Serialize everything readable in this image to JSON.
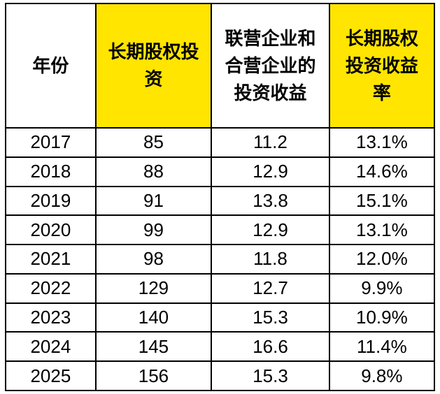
{
  "colors": {
    "header_highlight": "#FFE500",
    "border": "#000000",
    "text": "#000000",
    "background": "#FFFFFF"
  },
  "chart_data": {
    "type": "table",
    "title": "",
    "columns": [
      {
        "label": "年份",
        "highlight": false
      },
      {
        "label": "长期股权投资",
        "highlight": true
      },
      {
        "label": "联营企业和合营企业的投资收益",
        "highlight": false
      },
      {
        "label": "长期股权投资收益率",
        "highlight": true
      }
    ],
    "rows": [
      [
        "2017",
        "85",
        "11.2",
        "13.1%"
      ],
      [
        "2018",
        "88",
        "12.9",
        "14.6%"
      ],
      [
        "2019",
        "91",
        "13.8",
        "15.1%"
      ],
      [
        "2020",
        "99",
        "12.9",
        "13.1%"
      ],
      [
        "2021",
        "98",
        "11.8",
        "12.0%"
      ],
      [
        "2022",
        "129",
        "12.7",
        "9.9%"
      ],
      [
        "2023",
        "140",
        "15.3",
        "10.9%"
      ],
      [
        "2024",
        "145",
        "16.6",
        "11.4%"
      ],
      [
        "2025",
        "156",
        "15.3",
        "9.8%"
      ]
    ]
  }
}
